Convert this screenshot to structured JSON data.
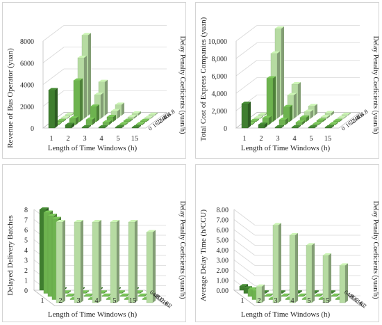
{
  "colors": {
    "dark": "#3f7e2f",
    "mid": "#6db34f",
    "light": "#b6dba2",
    "grid": "#d9d9d9",
    "axis": "#bfbfbf"
  },
  "chart_data": [
    {
      "type": "bar3d",
      "ylabel": "Revenue of Bus Operator (yuan)",
      "xlabel": "Length of Time Windows (h)",
      "zlabel": "Delay Penalty Coeficients (yuan/h)",
      "categories": [
        "1",
        "2",
        "3",
        "4",
        "5",
        "15"
      ],
      "depth_labels": [
        "0",
        "16.2",
        "32.4",
        "48.6",
        "64.8"
      ],
      "yticks": [
        "0",
        "2000",
        "4000",
        "6000",
        "8000"
      ],
      "ylim": [
        0,
        8000
      ],
      "grid": true,
      "series": [
        {
          "name": "64.8",
          "values": [
            0,
            7400,
            3100,
            1000,
            200,
            0
          ]
        },
        {
          "name": "48.6",
          "values": [
            0,
            5600,
            2200,
            700,
            150,
            0
          ]
        },
        {
          "name": "32.4",
          "values": [
            0,
            3800,
            1400,
            450,
            100,
            0
          ]
        },
        {
          "name": "16.2",
          "values": [
            0,
            600,
            500,
            250,
            60,
            0
          ]
        },
        {
          "name": "0",
          "values": [
            3500,
            300,
            0,
            0,
            0,
            0
          ]
        }
      ]
    },
    {
      "type": "bar3d",
      "ylabel": "Total Cost of Express Companies (yuan)",
      "xlabel": "Length of Time Windows (h)",
      "zlabel": "Delay Penalty Coeficients (yuan/h)",
      "categories": [
        "1",
        "2",
        "3",
        "4",
        "5",
        "15"
      ],
      "depth_labels": [
        "0",
        "16.2",
        "32.4",
        "48.6",
        "64.8"
      ],
      "yticks": [
        "0",
        "2,000",
        "4,000",
        "6,000",
        "8,000",
        "10,000"
      ],
      "ylim": [
        0,
        10000
      ],
      "grid": true,
      "series": [
        {
          "name": "64.8",
          "values": [
            0,
            10000,
            3600,
            1100,
            300,
            0
          ]
        },
        {
          "name": "48.6",
          "values": [
            0,
            7500,
            2700,
            800,
            200,
            0
          ]
        },
        {
          "name": "32.4",
          "values": [
            0,
            5000,
            1700,
            500,
            150,
            0
          ]
        },
        {
          "name": "16.2",
          "values": [
            0,
            800,
            600,
            300,
            80,
            0
          ]
        },
        {
          "name": "0",
          "values": [
            2800,
            400,
            0,
            0,
            0,
            0
          ]
        }
      ]
    },
    {
      "type": "bar3d",
      "ylabel": "Delayed Delivery Batches",
      "xlabel": "Length of Time Windows (h)",
      "zlabel": "Delay Penalty Coeficients (yuan/h)",
      "categories": [
        "1",
        "2",
        "3",
        "4",
        "5",
        "15"
      ],
      "depth_labels": [
        "64.8",
        "48.6",
        "32.4",
        "16.2",
        "0"
      ],
      "yticks": [
        "0",
        "1",
        "2",
        "3",
        "4",
        "5",
        "6",
        "7",
        "8"
      ],
      "ylim": [
        0,
        8
      ],
      "grid": true,
      "series": [
        {
          "name": "0",
          "values": [
            8,
            8,
            8,
            8,
            8,
            7
          ]
        },
        {
          "name": "16.2",
          "values": [
            8,
            0,
            0,
            0,
            0,
            0
          ]
        },
        {
          "name": "32.4",
          "values": [
            8,
            0,
            0,
            0,
            0,
            0
          ]
        },
        {
          "name": "48.6",
          "values": [
            8,
            0,
            0,
            0,
            0,
            0
          ]
        },
        {
          "name": "64.8",
          "values": [
            8,
            0,
            0,
            0,
            0,
            0
          ]
        }
      ]
    },
    {
      "type": "bar3d",
      "ylabel": "Average Delay Time (h/CCU)",
      "xlabel": "Length of Time Windows (h)",
      "zlabel": "Delay Penalty Coeficients (yuan/h)",
      "categories": [
        "1",
        "2",
        "3",
        "4",
        "5",
        "15"
      ],
      "depth_labels": [
        "64.8",
        "48.6",
        "32.4",
        "16.2",
        "0"
      ],
      "yticks": [
        "0.00",
        "1.00",
        "2.00",
        "3.00",
        "4.00",
        "5.00",
        "6.00",
        "7.00",
        "8.00"
      ],
      "ylim": [
        0,
        8
      ],
      "grid": true,
      "series": [
        {
          "name": "0",
          "values": [
            1.6,
            7.7,
            6.7,
            5.7,
            4.7,
            3.7
          ]
        },
        {
          "name": "16.2",
          "values": [
            0.9,
            0,
            0,
            0,
            0,
            0
          ]
        },
        {
          "name": "32.4",
          "values": [
            0.7,
            0,
            0,
            0,
            0,
            0
          ]
        },
        {
          "name": "48.6",
          "values": [
            0.5,
            0,
            0,
            0,
            0,
            0
          ]
        },
        {
          "name": "64.8",
          "values": [
            0.4,
            0,
            0,
            0,
            0,
            0
          ]
        }
      ]
    }
  ]
}
